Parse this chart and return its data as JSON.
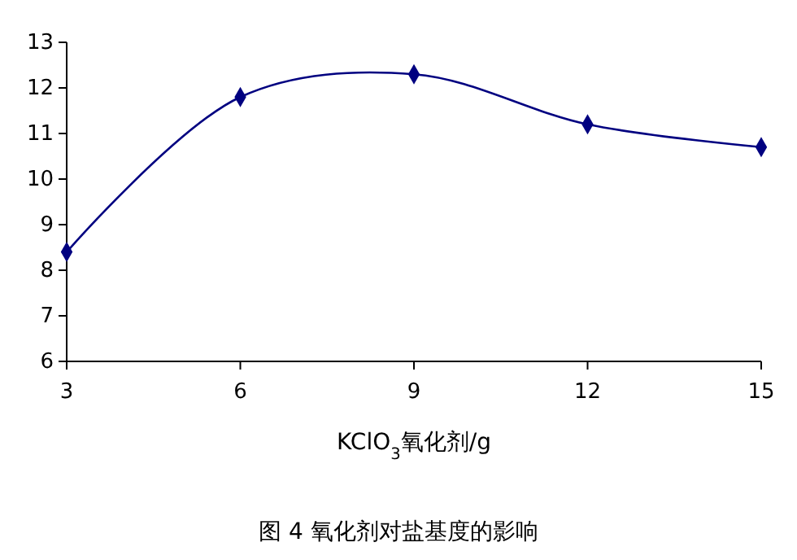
{
  "chart_data": {
    "type": "line",
    "title": "图 4 氧化剂对盐基度的影响",
    "xlabel": "KClO$_{3}$氧化剂/g",
    "x": [
      3,
      6,
      9,
      12,
      15
    ],
    "series": [
      {
        "color": "#000080",
        "values": [
          8.4,
          11.8,
          12.3,
          11.2,
          10.7
        ]
      }
    ],
    "xlim": [
      3,
      15
    ],
    "xticks": [
      3,
      6,
      9,
      12,
      15
    ],
    "ylim": [
      6,
      13
    ],
    "yticks": [
      6,
      7,
      8,
      9,
      10,
      11,
      12,
      13
    ],
    "grid": false,
    "marker": "diamond",
    "line_style": "solid"
  }
}
